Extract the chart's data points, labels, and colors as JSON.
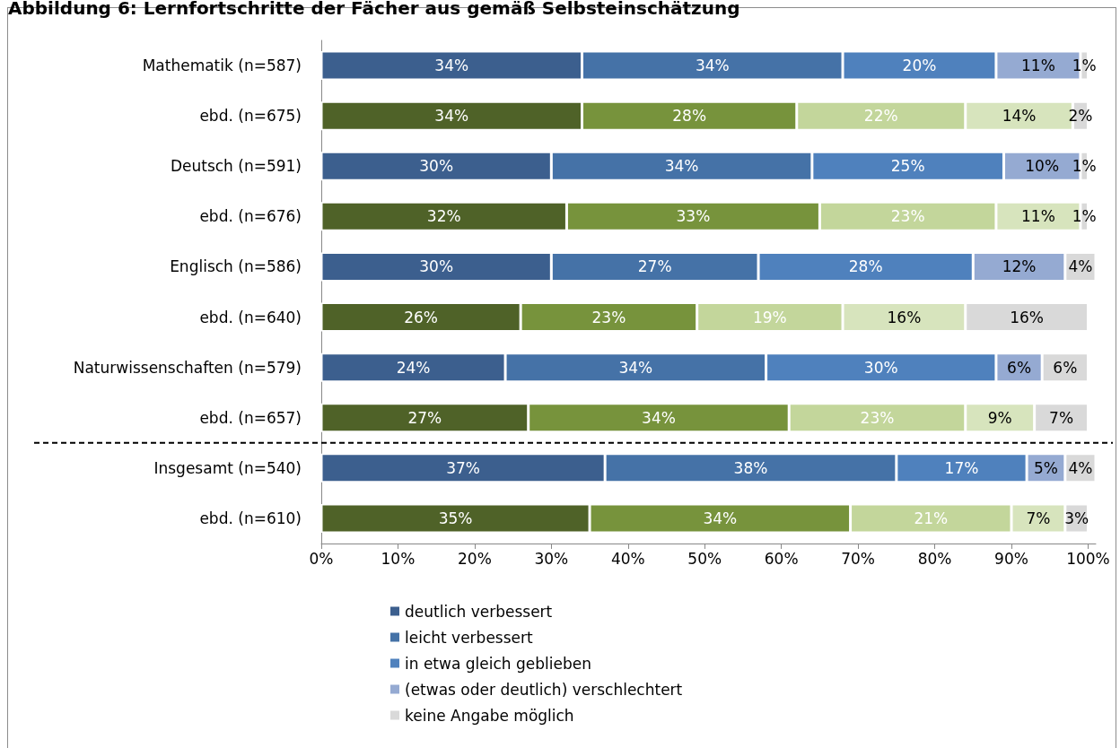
{
  "chart_data": {
    "type": "bar",
    "orientation": "horizontal",
    "stacked": true,
    "title": "Abbildung 6: Lernfortschritte der Fächer aus gemäß Selbsteinschätzung",
    "categories": [
      "Mathematik (n=587)",
      "ebd. (n=675)",
      "Deutsch (n=591)",
      "ebd. (n=676)",
      "Englisch (n=586)",
      "ebd. (n=640)",
      "Naturwissenschaften (n=579)",
      "ebd. (n=657)",
      "Insgesamt (n=540)",
      "ebd. (n=610)"
    ],
    "series": [
      {
        "name": "deutlich verbessert",
        "color": "#3c5f8e",
        "colors": [
          "#3c5f8e",
          "#4f6228",
          "#3c5f8e",
          "#4f6228",
          "#3c5f8e",
          "#4f6228",
          "#3c5f8e",
          "#4f6228",
          "#3c5f8e",
          "#4f6228"
        ],
        "values": [
          34,
          34,
          30,
          32,
          30,
          26,
          24,
          27,
          37,
          35
        ],
        "value_labels": [
          "34%",
          "34%",
          "30%",
          "32%",
          "30%",
          "26%",
          "24%",
          "27%",
          "37%",
          "35%"
        ]
      },
      {
        "name": "leicht verbessert",
        "color": "#4572a7",
        "colors": [
          "#4572a7",
          "#77933c",
          "#4572a7",
          "#77933c",
          "#4572a7",
          "#77933c",
          "#4572a7",
          "#77933c",
          "#4572a7",
          "#77933c"
        ],
        "values": [
          34,
          28,
          34,
          33,
          27,
          23,
          34,
          34,
          38,
          34
        ],
        "value_labels": [
          "34%",
          "28%",
          "34%",
          "33%",
          "27%",
          "23%",
          "34%",
          "34%",
          "38%",
          "34%"
        ]
      },
      {
        "name": "in etwa gleich geblieben",
        "color": "#4f81bd",
        "colors": [
          "#4f81bd",
          "#c3d69b",
          "#4f81bd",
          "#c3d69b",
          "#4f81bd",
          "#c3d69b",
          "#4f81bd",
          "#c3d69b",
          "#4f81bd",
          "#c3d69b"
        ],
        "values": [
          20,
          22,
          25,
          23,
          28,
          19,
          30,
          23,
          17,
          21
        ],
        "value_labels": [
          "20%",
          "22%",
          "25%",
          "23%",
          "28%",
          "19%",
          "30%",
          "23%",
          "17%",
          "21%"
        ]
      },
      {
        "name": "(etwas oder deutlich) verschlechtert",
        "color": "#95aad2",
        "colors": [
          "#95aad2",
          "#d7e4bd",
          "#95aad2",
          "#d7e4bd",
          "#95aad2",
          "#d7e4bd",
          "#95aad2",
          "#d7e4bd",
          "#95aad2",
          "#d7e4bd"
        ],
        "values": [
          11,
          14,
          10,
          11,
          12,
          16,
          6,
          9,
          5,
          7
        ],
        "value_labels": [
          "11%",
          "14%",
          "10%",
          "11%",
          "12%",
          "16%",
          "6%",
          "9%",
          "5%",
          "7%"
        ]
      },
      {
        "name": "keine Angabe möglich",
        "color": "#d9d9d9",
        "colors": [
          "#d9d9d9",
          "#d9d9d9",
          "#d9d9d9",
          "#d9d9d9",
          "#d9d9d9",
          "#d9d9d9",
          "#d9d9d9",
          "#d9d9d9",
          "#d9d9d9",
          "#d9d9d9"
        ],
        "values": [
          1,
          2,
          1,
          1,
          4,
          16,
          6,
          7,
          4,
          3
        ],
        "value_labels": [
          "1%",
          "2%",
          "1%",
          "1%",
          "4%",
          "16%",
          "6%",
          "7%",
          "4%",
          "3%"
        ]
      }
    ],
    "xlim": [
      0,
      101
    ],
    "xticks": [
      {
        "value": 0,
        "label": "0%"
      },
      {
        "value": 10,
        "label": "10%"
      },
      {
        "value": 20,
        "label": "20%"
      },
      {
        "value": 30,
        "label": "30%"
      },
      {
        "value": 40,
        "label": "40%"
      },
      {
        "value": 50,
        "label": "50%"
      },
      {
        "value": 60,
        "label": "60%"
      },
      {
        "value": 70,
        "label": "70%"
      },
      {
        "value": 80,
        "label": "80%"
      },
      {
        "value": 90,
        "label": "90%"
      },
      {
        "value": 100,
        "label": "100%"
      }
    ],
    "grid": false,
    "legend": "bottom"
  }
}
